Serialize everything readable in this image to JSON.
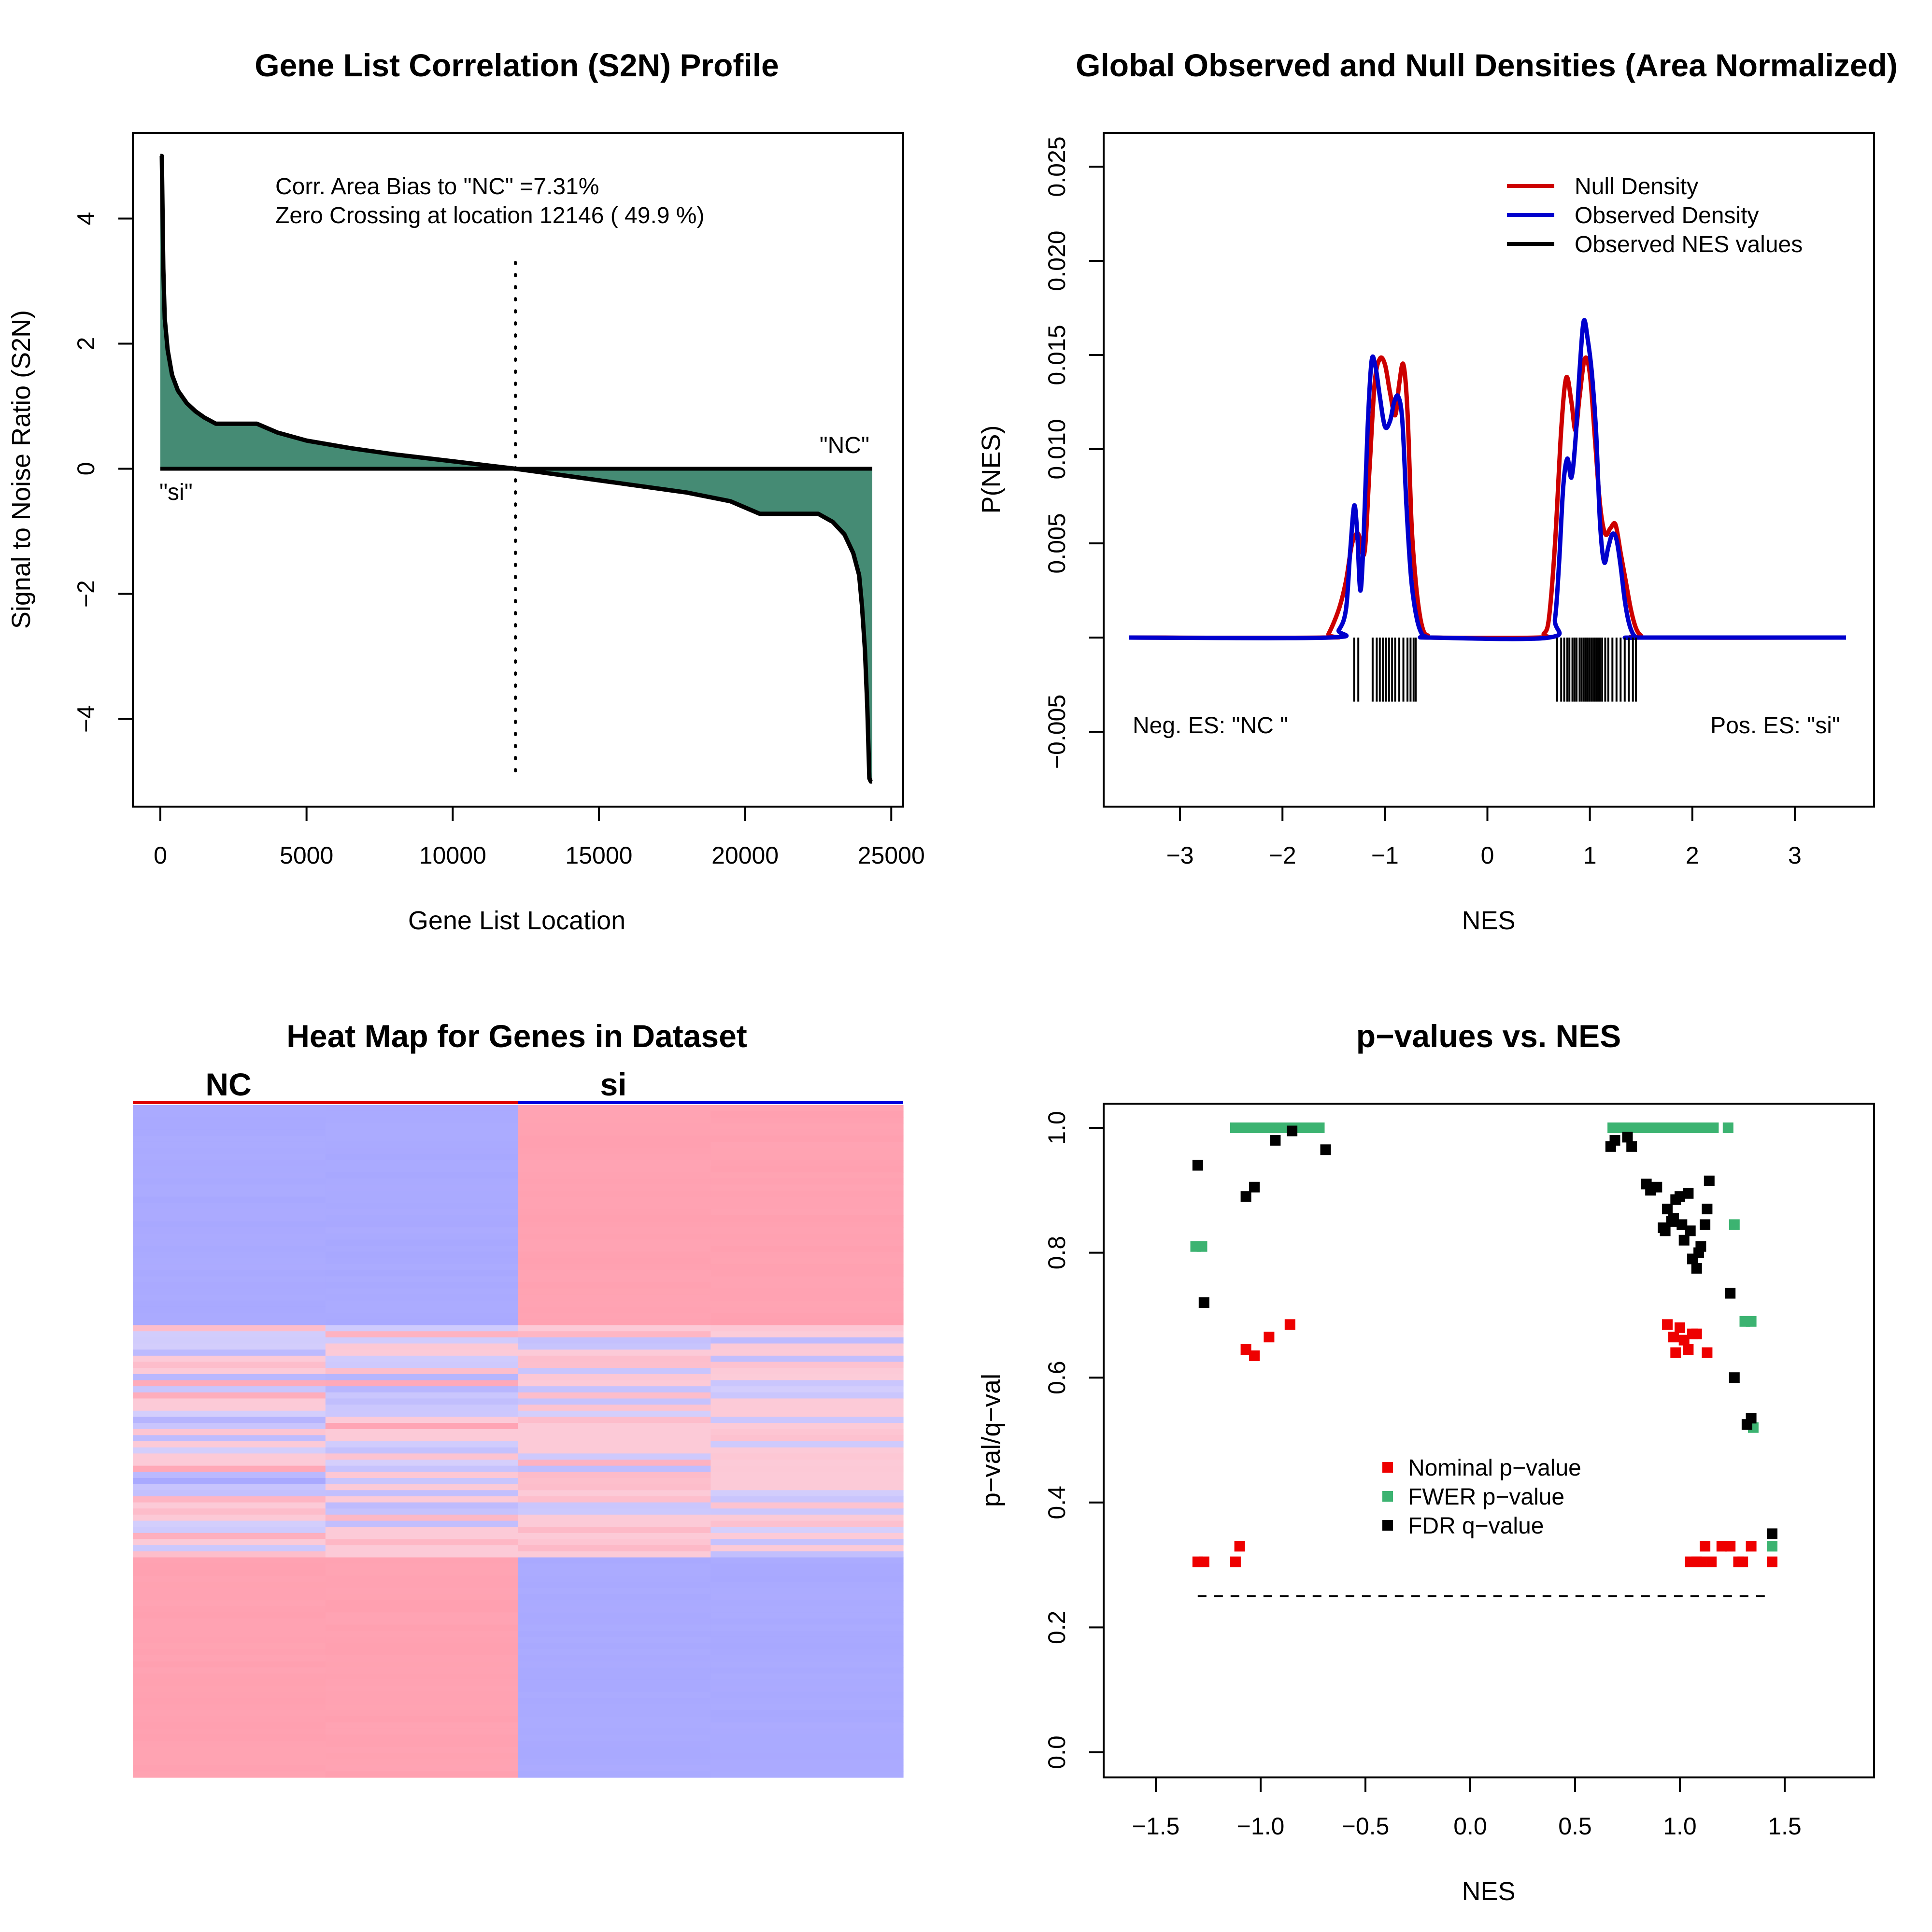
{
  "colors": {
    "s2n_fill": "#458B74",
    "null_density": "#CD0000",
    "observed_density": "#0000CD",
    "nominal": "#EE0000",
    "fwer": "#3CB371",
    "fdr": "#000000",
    "heat_high": "#FFA0B0",
    "heat_low": "#A8A8FF"
  },
  "chart_data": [
    {
      "type": "area",
      "title": "Gene List Correlation (S2N) Profile",
      "xlabel": "Gene List Location",
      "ylabel": "Signal to Noise Ratio (S2N)",
      "xlim": [
        0,
        24500
      ],
      "ylim": [
        -5,
        5
      ],
      "xticks": [
        0,
        5000,
        10000,
        15000,
        20000,
        25000
      ],
      "xtick_labels": [
        "0",
        "5000",
        "10000",
        "15000",
        "20000",
        "25000"
      ],
      "yticks": [
        -4,
        -2,
        0,
        2,
        4
      ],
      "ytick_labels": [
        "−4",
        "−2",
        "0",
        "2",
        "4"
      ],
      "profile": {
        "x": [
          0,
          50,
          100,
          150,
          250,
          400,
          600,
          900,
          1200,
          1500,
          1900,
          2500,
          3300,
          4000,
          5000,
          6500,
          8000,
          10000,
          12146,
          14000,
          16000,
          18000,
          19500,
          20500,
          21500,
          22500,
          23000,
          23400,
          23700,
          23900,
          24000,
          24100,
          24180,
          24250,
          24300,
          24350
        ],
        "y": [
          5,
          5,
          3.2,
          2.4,
          1.9,
          1.5,
          1.25,
          1.05,
          0.92,
          0.82,
          0.72,
          0.72,
          0.72,
          0.58,
          0.45,
          0.33,
          0.23,
          0.12,
          0,
          -0.12,
          -0.25,
          -0.38,
          -0.52,
          -0.72,
          -0.72,
          -0.72,
          -0.85,
          -1.05,
          -1.35,
          -1.7,
          -2.2,
          -2.9,
          -3.8,
          -4.95,
          -5,
          -5
        ]
      },
      "zero_crossing": 12146,
      "annotation_lines": [
        "Corr. Area Bias to \"NC\" =7.31%",
        "Zero Crossing at location  12146  ( 49.9  %)"
      ],
      "label_pos_end": "\"NC\"",
      "label_neg_end": "\"si\""
    },
    {
      "type": "line",
      "title": "Global Observed and Null Densities (Area Normalized)",
      "xlabel": "NES",
      "ylabel": "P(NES)",
      "xlim": [
        -3.5,
        3.5
      ],
      "ylim": [
        -0.005,
        0.025
      ],
      "xticks": [
        -3,
        -2,
        -1,
        0,
        1,
        2,
        3
      ],
      "xtick_labels": [
        "−3",
        "−2",
        "−1",
        "0",
        "1",
        "2",
        "3"
      ],
      "yticks": [
        -0.005,
        0,
        0.005,
        0.01,
        0.015,
        0.02,
        0.025
      ],
      "ytick_labels": [
        "−0.005",
        "",
        "0.005",
        "0.010",
        "0.015",
        "0.020",
        "0.025"
      ],
      "legend": [
        "Null Density",
        "Observed Density",
        "Observed NES values"
      ],
      "legend_position": "top-right",
      "series": [
        {
          "name": "Null Density",
          "x": [
            -3.5,
            -1.6,
            -1.55,
            -1.45,
            -1.38,
            -1.32,
            -1.26,
            -1.2,
            -1.15,
            -1.1,
            -1.05,
            -1.0,
            -0.95,
            -0.9,
            -0.86,
            -0.82,
            -0.78,
            -0.74,
            -0.7,
            -0.66,
            -0.62,
            -0.58,
            -0.55,
            0.5,
            0.55,
            0.6,
            0.66,
            0.72,
            0.77,
            0.82,
            0.86,
            0.9,
            0.95,
            1.0,
            1.05,
            1.1,
            1.15,
            1.2,
            1.25,
            1.3,
            1.35,
            1.4,
            1.45,
            1.5,
            1.55,
            3.5
          ],
          "y": [
            0,
            0,
            0.0002,
            0.0015,
            0.003,
            0.005,
            0.0055,
            0.0045,
            0.009,
            0.0135,
            0.0148,
            0.0145,
            0.013,
            0.0118,
            0.0135,
            0.0145,
            0.012,
            0.006,
            0.003,
            0.0012,
            0.0003,
            0.0001,
            0,
            0,
            0.0002,
            0.001,
            0.005,
            0.011,
            0.0138,
            0.0125,
            0.011,
            0.0128,
            0.0148,
            0.014,
            0.0105,
            0.007,
            0.0055,
            0.0058,
            0.006,
            0.0045,
            0.003,
            0.0015,
            0.0005,
            0.0001,
            0,
            0
          ]
        },
        {
          "name": "Observed Density",
          "x": [
            -3.5,
            -1.55,
            -1.45,
            -1.38,
            -1.34,
            -1.3,
            -1.27,
            -1.24,
            -1.21,
            -1.17,
            -1.13,
            -1.09,
            -1.05,
            -1.0,
            -0.95,
            -0.91,
            -0.87,
            -0.83,
            -0.79,
            -0.75,
            -0.72,
            -0.68,
            -0.64,
            -0.6,
            -0.56,
            0.6,
            0.66,
            0.7,
            0.74,
            0.78,
            0.82,
            0.86,
            0.9,
            0.94,
            0.98,
            1.02,
            1.06,
            1.1,
            1.14,
            1.18,
            1.22,
            1.26,
            1.3,
            1.34,
            1.38,
            1.42,
            1.46,
            1.5,
            3.5
          ],
          "y": [
            0,
            0,
            0.0004,
            0.0015,
            0.0045,
            0.007,
            0.0055,
            0.0025,
            0.005,
            0.011,
            0.0147,
            0.0143,
            0.0128,
            0.0112,
            0.0115,
            0.0125,
            0.0128,
            0.0115,
            0.007,
            0.0035,
            0.002,
            0.0008,
            0.0002,
            5e-05,
            0,
            0,
            0.001,
            0.004,
            0.008,
            0.0095,
            0.0085,
            0.0105,
            0.0142,
            0.0168,
            0.0158,
            0.014,
            0.011,
            0.006,
            0.004,
            0.0048,
            0.0055,
            0.0052,
            0.0038,
            0.002,
            0.0008,
            0.0002,
            0,
            0,
            0
          ]
        }
      ],
      "observed_nes_negative": [
        -1.3,
        -1.26,
        -1.12,
        -1.08,
        -1.05,
        -1.02,
        -0.99,
        -0.96,
        -0.93,
        -0.9,
        -0.86,
        -0.82,
        -0.78,
        -0.75,
        -0.72,
        -0.7
      ],
      "observed_nes_positive": [
        0.68,
        0.72,
        0.75,
        0.78,
        0.8,
        0.83,
        0.85,
        0.87,
        0.9,
        0.92,
        0.94,
        0.96,
        0.98,
        1.0,
        1.02,
        1.04,
        1.06,
        1.08,
        1.1,
        1.12,
        1.15,
        1.18,
        1.22,
        1.26,
        1.3,
        1.34,
        1.38,
        1.42,
        1.45
      ],
      "annotation_left": "Neg. ES: \"NC \"",
      "annotation_right": "Pos. ES: \"si\""
    },
    {
      "type": "heatmap",
      "title": "Heat Map for Genes in Dataset",
      "column_groups": [
        "NC",
        "si"
      ],
      "columns_per_group": 2,
      "row_blocks": [
        {
          "rows": 36,
          "pattern": [
            -1,
            -1,
            1,
            1
          ]
        },
        {
          "rows": 38,
          "pattern": "mixed"
        },
        {
          "rows": 36,
          "pattern": [
            1,
            1,
            -1,
            -1
          ]
        }
      ]
    },
    {
      "type": "scatter",
      "title": "p−values vs. NES",
      "xlabel": "NES",
      "ylabel": "p−val/q−val",
      "xlim": [
        -1.75,
        1.9
      ],
      "ylim": [
        -0.04,
        1.04
      ],
      "xticks": [
        -1.5,
        -1.0,
        -0.5,
        0.0,
        0.5,
        1.0,
        1.5
      ],
      "xtick_labels": [
        "−1.5",
        "−1.0",
        "−0.5",
        "0.0",
        "0.5",
        "1.0",
        "1.5"
      ],
      "yticks": [
        0.0,
        0.2,
        0.4,
        0.6,
        0.8,
        1.0
      ],
      "ytick_labels": [
        "0.0",
        "0.2",
        "0.4",
        "0.6",
        "0.8",
        "1.0"
      ],
      "threshold": 0.25,
      "legend": [
        "Nominal p−value",
        "FWER p−value",
        "FDR q−value"
      ],
      "legend_position": "center",
      "series": [
        {
          "name": "Nominal p−value",
          "x": [
            -1.3,
            -1.27,
            -1.12,
            -1.1,
            -1.07,
            -1.03,
            -0.96,
            -0.86,
            0.94,
            0.97,
            0.98,
            1.0,
            1.02,
            1.04,
            1.06,
            1.08,
            1.13,
            1.05,
            1.08,
            1.1,
            1.12,
            1.15,
            1.2,
            1.24,
            1.28,
            1.3,
            1.34,
            1.44
          ],
          "y": [
            0.305,
            0.305,
            0.305,
            0.33,
            0.645,
            0.635,
            0.665,
            0.685,
            0.685,
            0.665,
            0.64,
            0.68,
            0.66,
            0.645,
            0.67,
            0.67,
            0.64,
            0.305,
            0.305,
            0.305,
            0.33,
            0.305,
            0.33,
            0.33,
            0.305,
            0.305,
            0.33,
            0.305
          ]
        },
        {
          "name": "FWER p−value",
          "x": [
            -1.31,
            -1.28,
            -1.12,
            -1.09,
            -1.06,
            -1.03,
            -1.0,
            -0.97,
            -0.94,
            -0.91,
            -0.88,
            -0.84,
            -0.81,
            -0.78,
            -0.75,
            -0.72,
            0.68,
            0.72,
            0.76,
            0.8,
            0.84,
            0.88,
            0.92,
            0.96,
            1.0,
            1.04,
            1.08,
            1.12,
            1.16,
            1.23,
            1.26,
            1.31,
            1.34,
            1.35,
            1.44
          ],
          "y": [
            0.81,
            0.81,
            1.0,
            1.0,
            1.0,
            1.0,
            1.0,
            1.0,
            1.0,
            1.0,
            1.0,
            1.0,
            1.0,
            1.0,
            1.0,
            1.0,
            1.0,
            1.0,
            1.0,
            1.0,
            1.0,
            1.0,
            1.0,
            1.0,
            1.0,
            1.0,
            1.0,
            1.0,
            1.0,
            1.0,
            0.845,
            0.69,
            0.69,
            0.52,
            0.33
          ]
        },
        {
          "name": "FDR q−value",
          "x": [
            -1.3,
            -1.27,
            -1.07,
            -1.03,
            -0.93,
            -0.85,
            -0.69,
            0.67,
            0.69,
            0.75,
            0.77,
            0.84,
            0.86,
            0.89,
            0.92,
            0.94,
            0.96,
            0.98,
            1.0,
            1.02,
            1.04,
            1.06,
            1.08,
            1.1,
            1.12,
            1.14,
            0.93,
            0.97,
            1.01,
            1.05,
            1.09,
            1.13,
            1.24,
            1.26,
            1.32,
            1.34,
            1.44
          ],
          "y": [
            0.94,
            0.72,
            0.89,
            0.905,
            0.98,
            0.995,
            0.965,
            0.97,
            0.98,
            0.985,
            0.97,
            0.91,
            0.9,
            0.905,
            0.84,
            0.87,
            0.85,
            0.885,
            0.89,
            0.82,
            0.895,
            0.79,
            0.775,
            0.81,
            0.845,
            0.915,
            0.835,
            0.855,
            0.845,
            0.835,
            0.8,
            0.87,
            0.735,
            0.6,
            0.525,
            0.535,
            0.35
          ]
        }
      ]
    }
  ]
}
